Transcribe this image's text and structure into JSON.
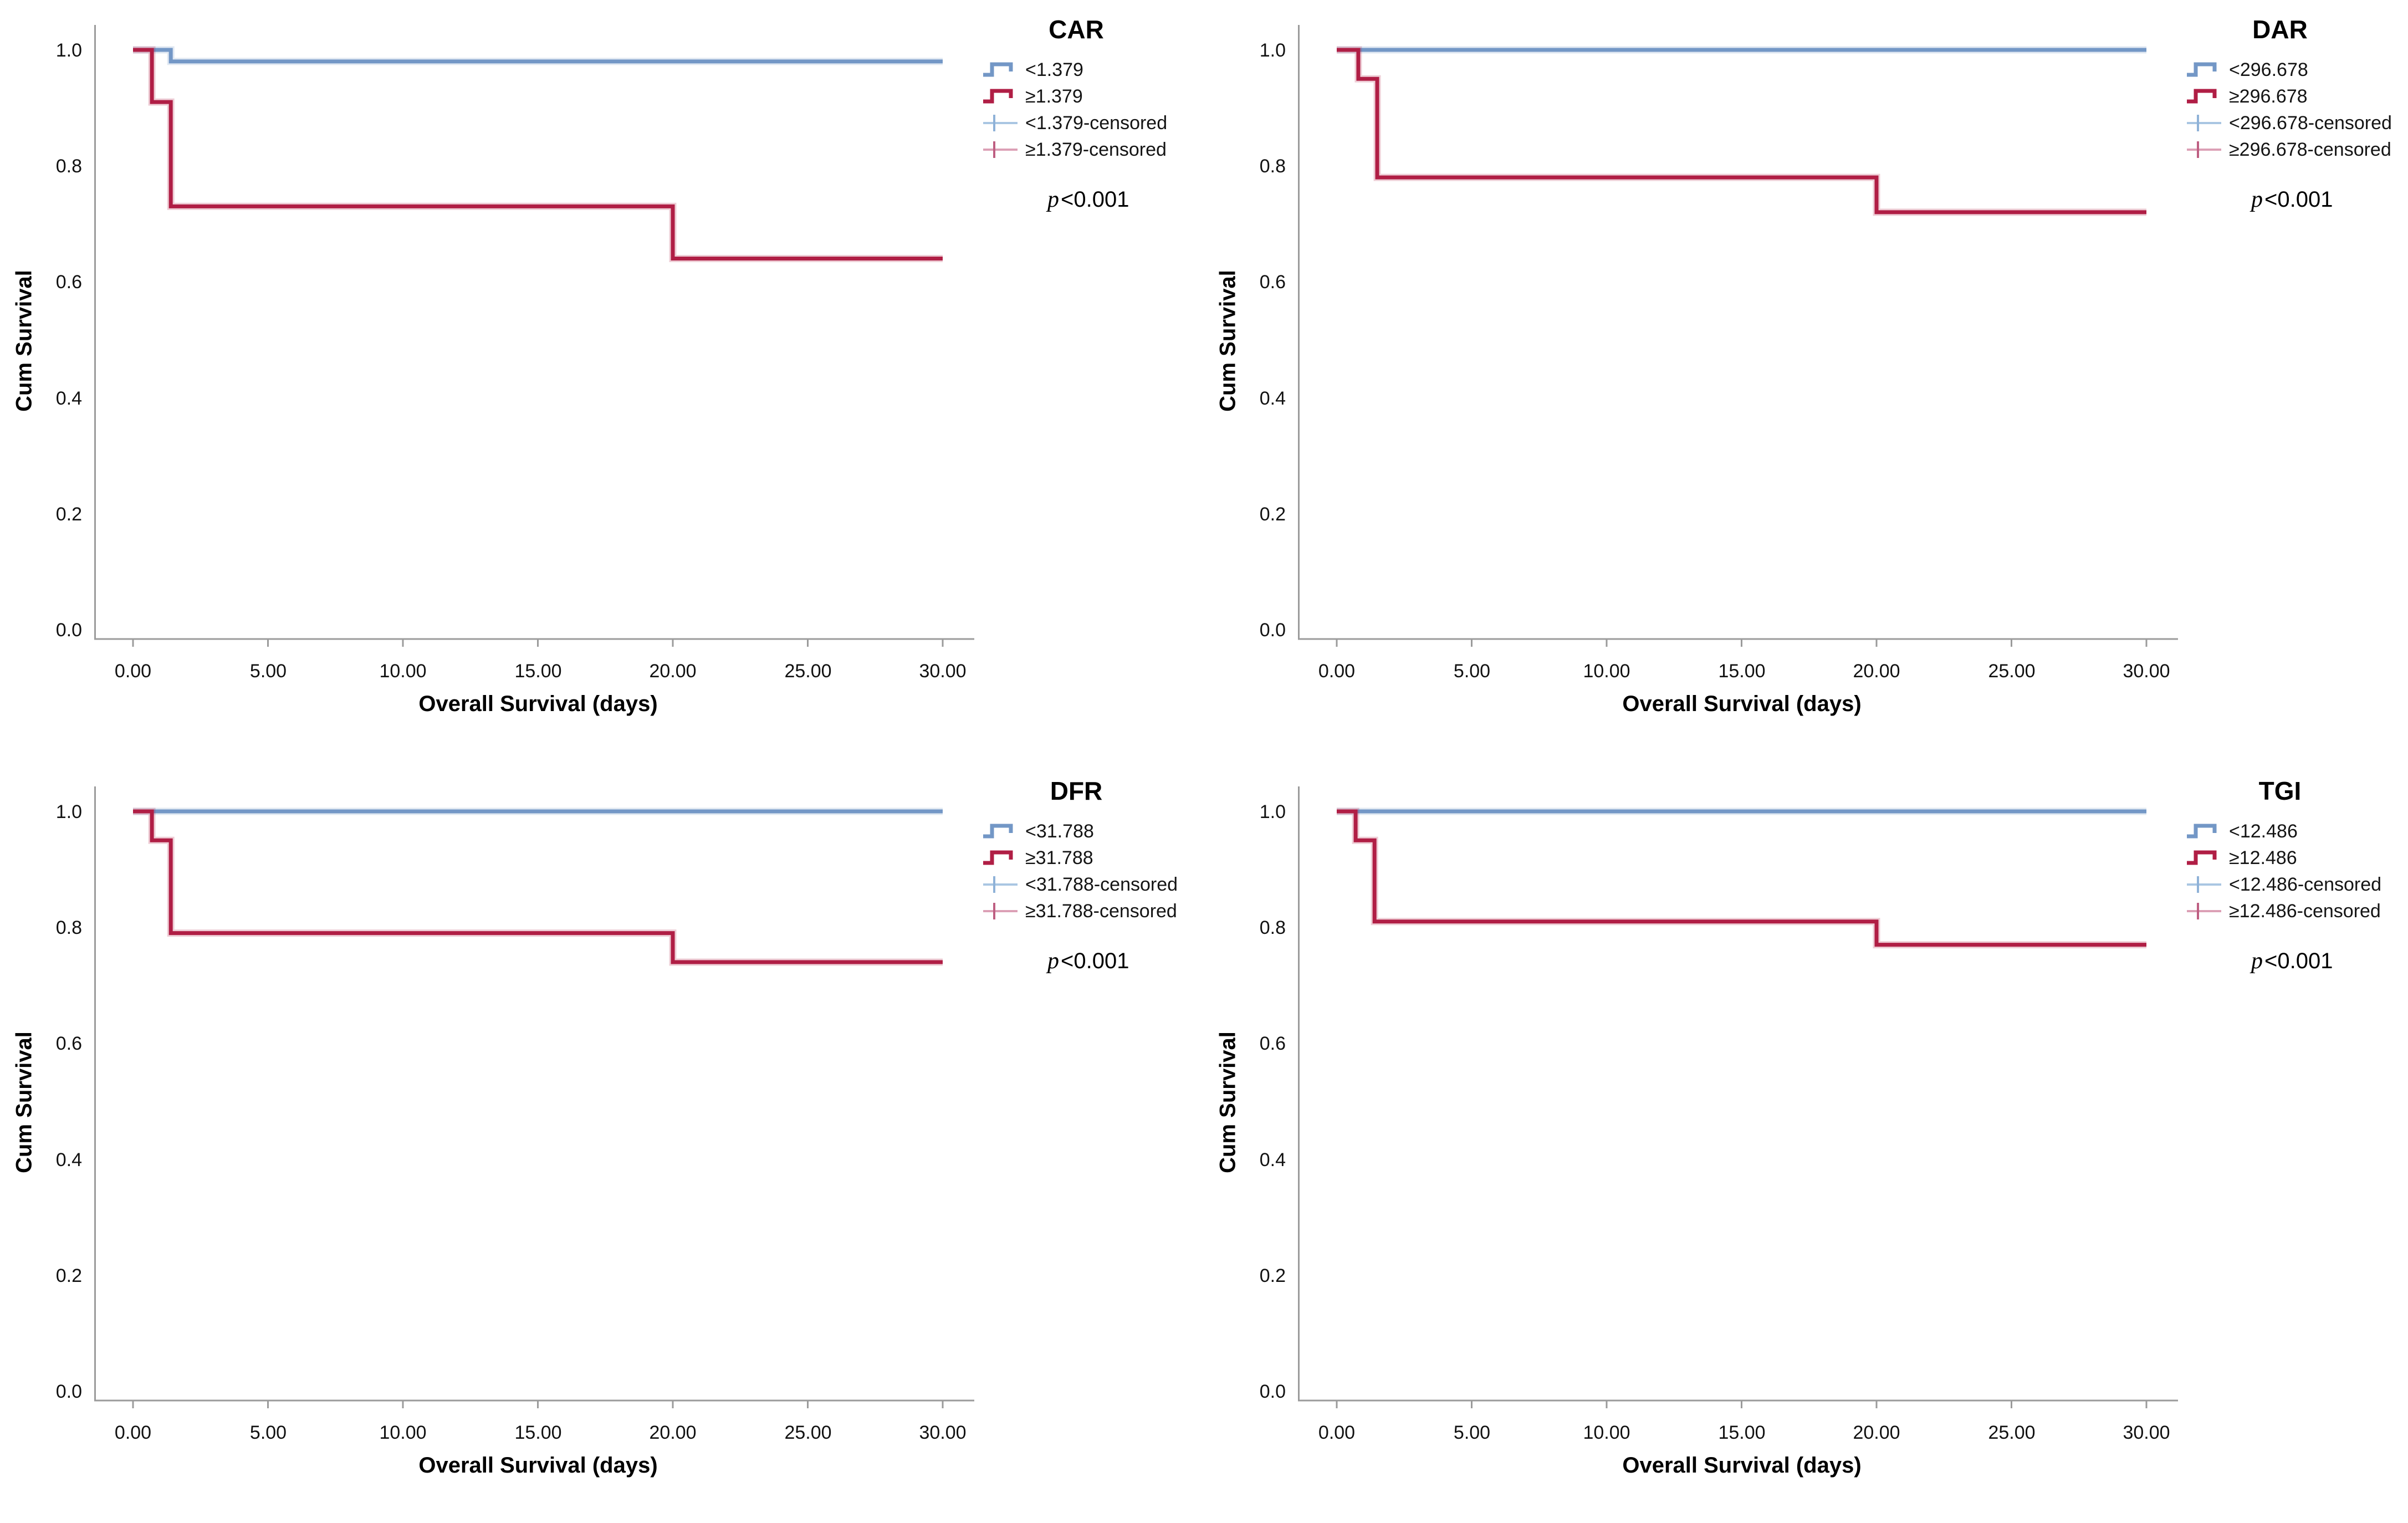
{
  "figure": {
    "ylabel": "Cum Survival",
    "xlabel": "Overall Survival (days)",
    "p_italic": "p",
    "p_rest": "<0.001"
  },
  "axes": {
    "x_tick_labels": [
      "0.00",
      "5.00",
      "10.00",
      "15.00",
      "20.00",
      "25.00",
      "30.00"
    ],
    "y_tick_labels": [
      "1.0",
      "0.8",
      "0.6",
      "0.4",
      "0.2",
      "0.0"
    ]
  },
  "colors": {
    "blue": "#7397C6",
    "red": "#B01E45",
    "blue_censored": "#A9C6E2",
    "blue_censored_tick": "#8FB2D8",
    "red_censored": "#DCA0B6",
    "red_censored_tick": "#BE5F82",
    "axis": "#9B9B9B"
  },
  "chart_data": [
    {
      "type": "line",
      "title": "CAR",
      "xlabel": "Overall Survival (days)",
      "ylabel": "Cum Survival",
      "xlim": [
        0,
        30
      ],
      "ylim": [
        0,
        1.0
      ],
      "x_ticks": [
        0,
        5,
        10,
        15,
        20,
        25,
        30
      ],
      "y_ticks": [
        1.0,
        0.8,
        0.6,
        0.4,
        0.2,
        0.0
      ],
      "grid": false,
      "legend_position": "right",
      "p_label": "p<0.001",
      "legend": [
        "<1.379",
        "≥1.379",
        "<1.379-censored",
        "≥1.379-censored"
      ],
      "series": [
        {
          "name": "<1.379",
          "color": "blue",
          "points": [
            [
              0,
              1.0
            ],
            [
              1.4,
              0.98
            ]
          ]
        },
        {
          "name": "≥1.379",
          "color": "red",
          "points": [
            [
              0,
              1.0
            ],
            [
              0.7,
              0.91
            ],
            [
              1.4,
              0.73
            ],
            [
              20,
              0.64
            ]
          ]
        }
      ]
    },
    {
      "type": "line",
      "title": "DAR",
      "xlabel": "Overall Survival (days)",
      "ylabel": "Cum Survival",
      "xlim": [
        0,
        30
      ],
      "ylim": [
        0,
        1.0
      ],
      "x_ticks": [
        0,
        5,
        10,
        15,
        20,
        25,
        30
      ],
      "y_ticks": [
        1.0,
        0.8,
        0.6,
        0.4,
        0.2,
        0.0
      ],
      "grid": false,
      "legend_position": "right",
      "p_label": "p<0.001",
      "legend": [
        "<296.678",
        "≥296.678",
        "<296.678-censored",
        "≥296.678-censored"
      ],
      "series": [
        {
          "name": "<296.678",
          "color": "blue",
          "points": [
            [
              0,
              1.0
            ]
          ]
        },
        {
          "name": "≥296.678",
          "color": "red",
          "points": [
            [
              0,
              1.0
            ],
            [
              0.8,
              0.95
            ],
            [
              1.5,
              0.78
            ],
            [
              20,
              0.72
            ]
          ]
        }
      ]
    },
    {
      "type": "line",
      "title": "DFR",
      "xlabel": "Overall Survival (days)",
      "ylabel": "Cum Survival",
      "xlim": [
        0,
        30
      ],
      "ylim": [
        0,
        1.0
      ],
      "x_ticks": [
        0,
        5,
        10,
        15,
        20,
        25,
        30
      ],
      "y_ticks": [
        1.0,
        0.8,
        0.6,
        0.4,
        0.2,
        0.0
      ],
      "grid": false,
      "legend_position": "right",
      "p_label": "p<0.001",
      "legend": [
        "<31.788",
        "≥31.788",
        "<31.788-censored",
        "≥31.788-censored"
      ],
      "series": [
        {
          "name": "<31.788",
          "color": "blue",
          "points": [
            [
              0,
              1.0
            ]
          ]
        },
        {
          "name": "≥31.788",
          "color": "red",
          "points": [
            [
              0,
              1.0
            ],
            [
              0.7,
              0.95
            ],
            [
              1.4,
              0.79
            ],
            [
              20,
              0.74
            ]
          ]
        }
      ]
    },
    {
      "type": "line",
      "title": "TGI",
      "xlabel": "Overall Survival (days)",
      "ylabel": "Cum Survival",
      "xlim": [
        0,
        30
      ],
      "ylim": [
        0,
        1.0
      ],
      "x_ticks": [
        0,
        5,
        10,
        15,
        20,
        25,
        30
      ],
      "y_ticks": [
        1.0,
        0.8,
        0.6,
        0.4,
        0.2,
        0.0
      ],
      "grid": false,
      "legend_position": "right",
      "p_label": "p<0.001",
      "legend": [
        "<12.486",
        "≥12.486",
        "<12.486-censored",
        "≥12.486-censored"
      ],
      "series": [
        {
          "name": "<12.486",
          "color": "blue",
          "points": [
            [
              0,
              1.0
            ]
          ]
        },
        {
          "name": "≥12.486",
          "color": "red",
          "points": [
            [
              0,
              1.0
            ],
            [
              0.7,
              0.95
            ],
            [
              1.4,
              0.81
            ],
            [
              20,
              0.77
            ]
          ]
        }
      ]
    }
  ]
}
